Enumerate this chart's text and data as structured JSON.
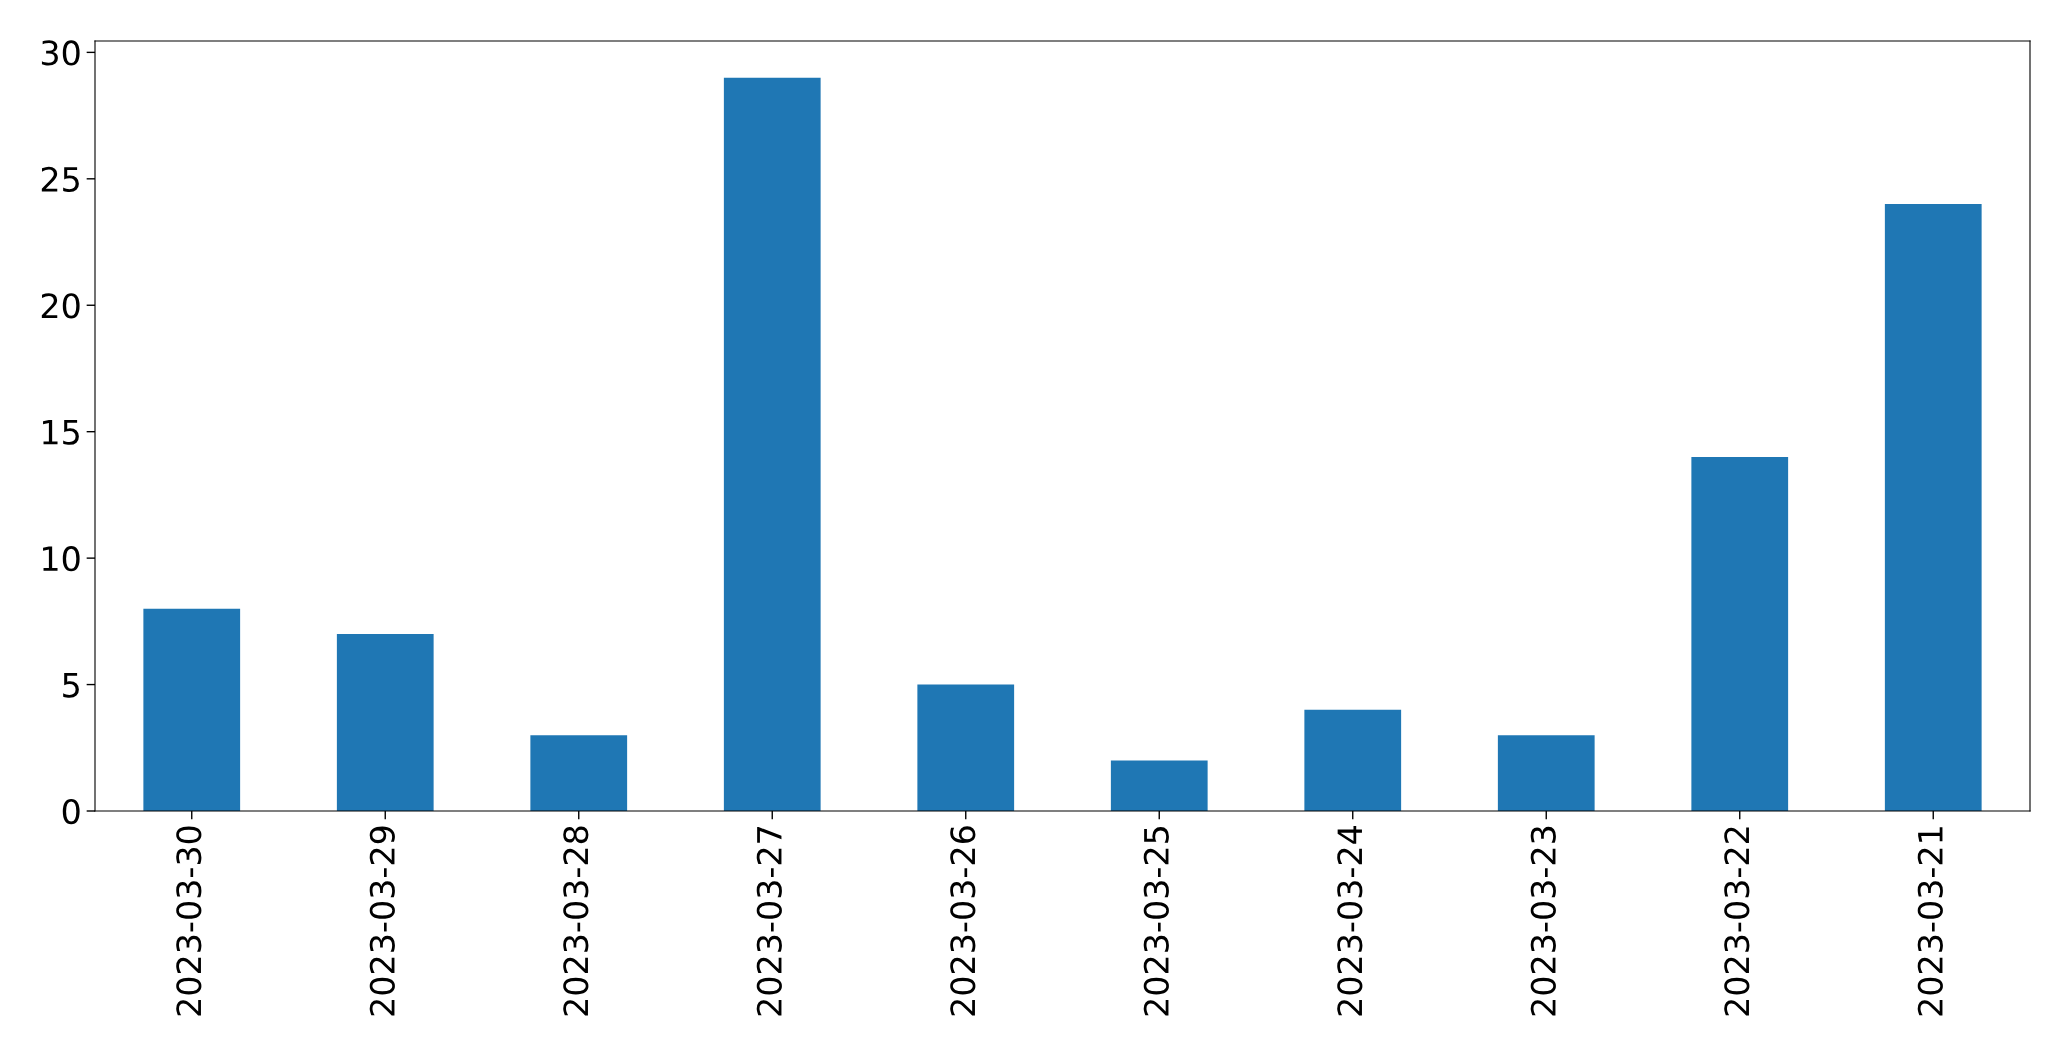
{
  "chart_data": {
    "type": "bar",
    "categories": [
      "2023-03-30",
      "2023-03-29",
      "2023-03-28",
      "2023-03-27",
      "2023-03-26",
      "2023-03-25",
      "2023-03-24",
      "2023-03-23",
      "2023-03-22",
      "2023-03-21"
    ],
    "values": [
      8,
      7,
      3,
      29,
      5,
      2,
      4,
      3,
      14,
      24
    ],
    "color": "#1f77b4",
    "ylim": [
      0,
      30.45
    ],
    "yticks": [
      0,
      5,
      10,
      15,
      20,
      25,
      30
    ],
    "grid": false,
    "legend": false
  }
}
